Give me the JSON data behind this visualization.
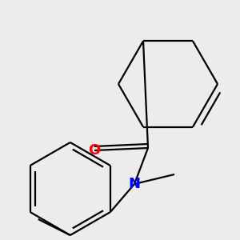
{
  "bg_color": "#ececec",
  "bond_color": "#000000",
  "o_color": "#ff0000",
  "n_color": "#0000ff",
  "line_width": 1.6,
  "font_size": 13
}
